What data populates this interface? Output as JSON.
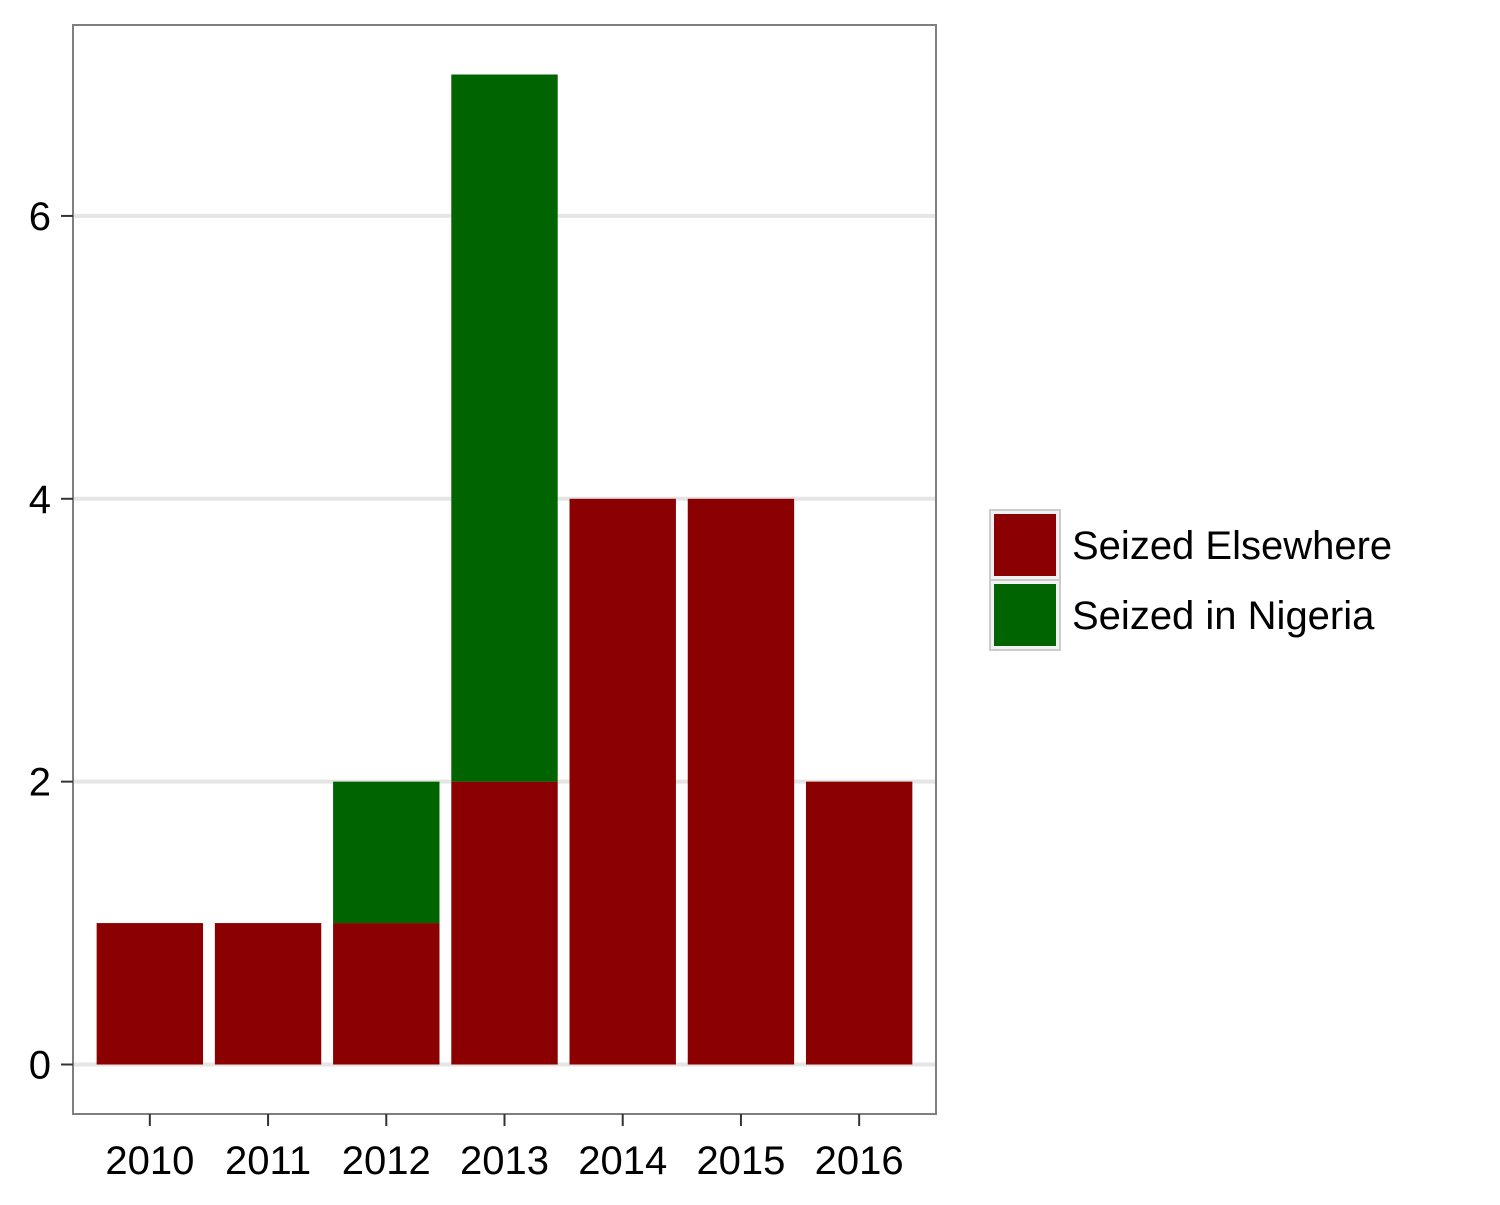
{
  "chart_data": {
    "type": "bar",
    "stacked": true,
    "title": "",
    "xlabel": "",
    "ylabel": "",
    "categories": [
      "2010",
      "2011",
      "2012",
      "2013",
      "2014",
      "2015",
      "2016"
    ],
    "series": [
      {
        "name": "Seized Elsewhere",
        "color": "#8b0000",
        "values": [
          1,
          1,
          1,
          2,
          4,
          4,
          2
        ]
      },
      {
        "name": "Seized in Nigeria",
        "color": "#006400",
        "values": [
          0,
          0,
          1,
          5,
          0,
          0,
          0
        ]
      }
    ],
    "ylim": [
      -0.35,
      7.35
    ],
    "yticks": [
      0,
      2,
      4,
      6
    ],
    "grid": true,
    "legend_position": "right"
  }
}
